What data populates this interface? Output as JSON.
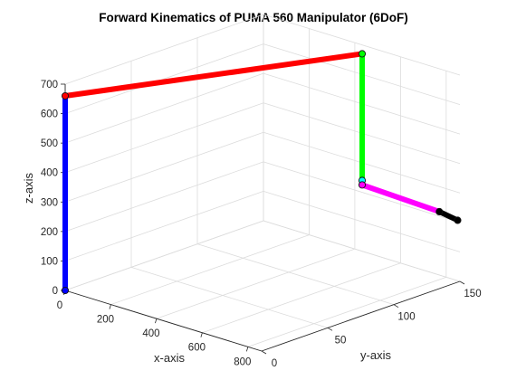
{
  "chart_data": {
    "type": "line",
    "title": "Forward Kinematics of PUMA 560 Manipulator (6DoF)",
    "xlabel": "x-axis",
    "ylabel": "y-axis",
    "zlabel": "z-axis",
    "xlim": [
      0,
      860
    ],
    "ylim": [
      0,
      150
    ],
    "zlim": [
      0,
      700
    ],
    "xticks": [
      0,
      200,
      400,
      600,
      800
    ],
    "yticks": [
      0,
      50,
      100,
      150
    ],
    "zticks": [
      0,
      100,
      200,
      300,
      400,
      500,
      600,
      700
    ],
    "grid": true,
    "joints": [
      {
        "x": 0,
        "y": 0,
        "z": 0
      },
      {
        "x": 0,
        "y": 0,
        "z": 660
      },
      {
        "x": 432,
        "y": 150,
        "z": 670
      },
      {
        "x": 432,
        "y": 150,
        "z": 240
      },
      {
        "x": 432,
        "y": 150,
        "z": 225
      },
      {
        "x": 770,
        "y": 150,
        "z": 215
      },
      {
        "x": 850,
        "y": 150,
        "z": 205
      }
    ],
    "links": [
      {
        "from": 0,
        "to": 1,
        "color": "#0000ff"
      },
      {
        "from": 1,
        "to": 2,
        "color": "#ff0000"
      },
      {
        "from": 2,
        "to": 3,
        "color": "#00ff00"
      },
      {
        "from": 3,
        "to": 4,
        "color": "#00ffff"
      },
      {
        "from": 4,
        "to": 5,
        "color": "#ff00ff"
      },
      {
        "from": 5,
        "to": 6,
        "color": "#000000"
      }
    ]
  }
}
